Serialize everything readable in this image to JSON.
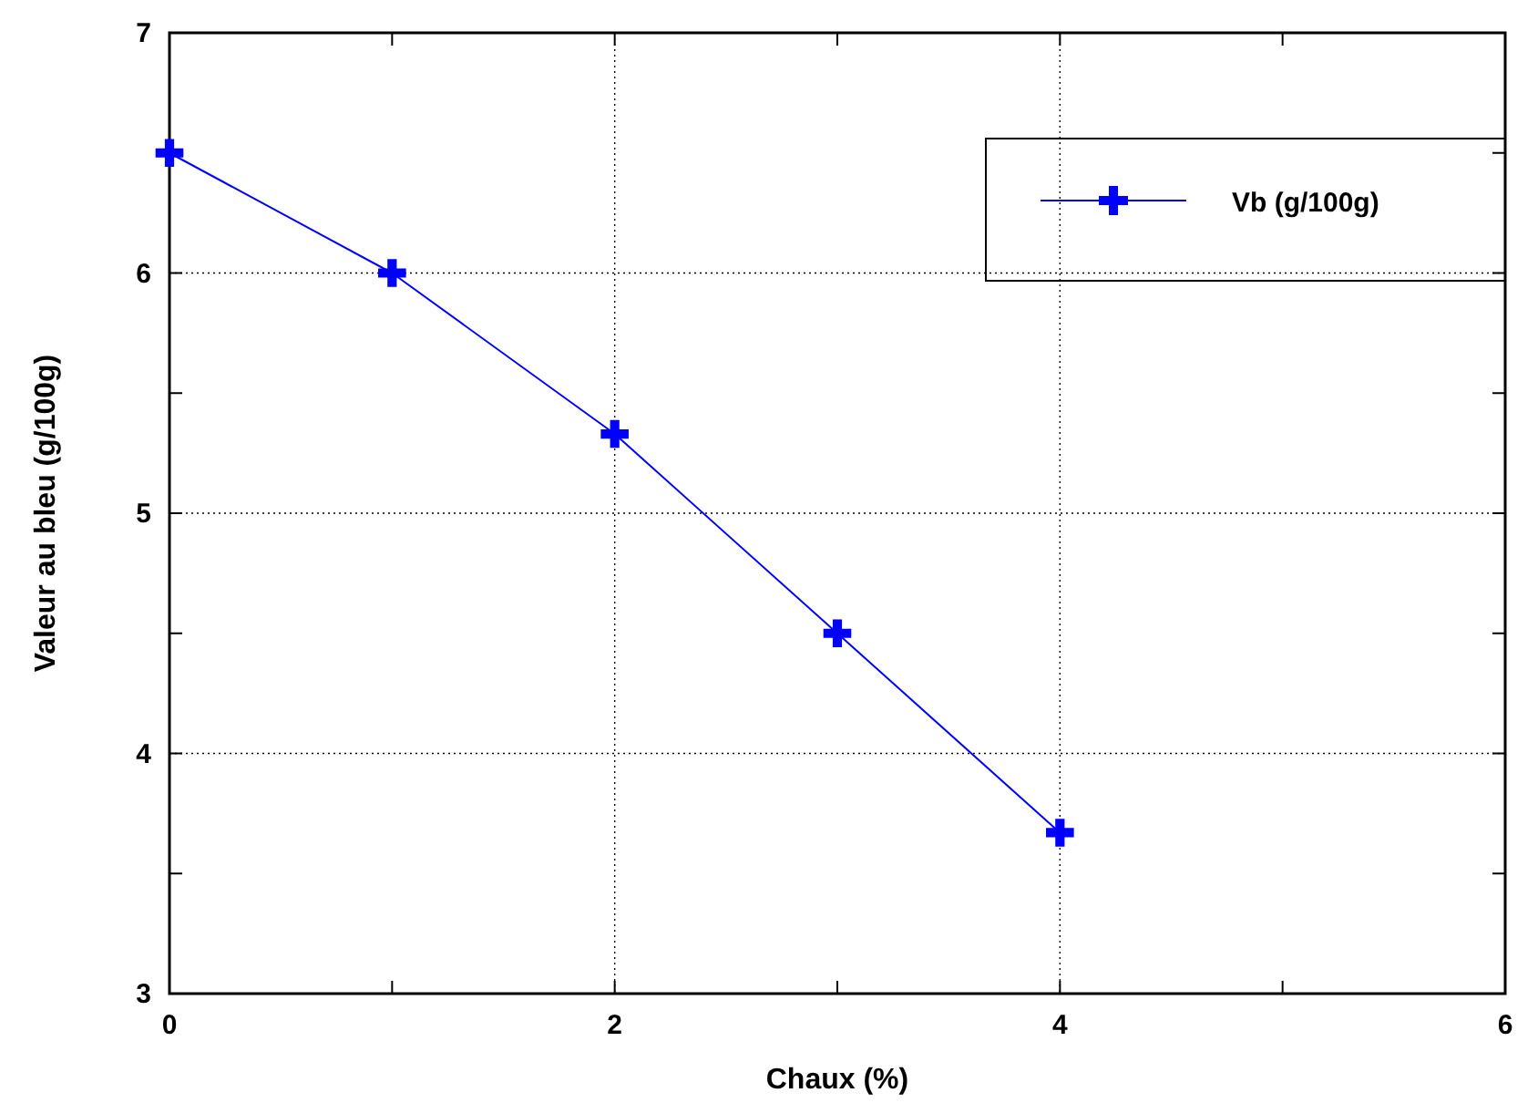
{
  "chart_data": {
    "type": "line",
    "xlabel": "Chaux (%)",
    "ylabel": "Valeur au bleu (g/100g)",
    "x": [
      0,
      1,
      2,
      3,
      4
    ],
    "series": [
      {
        "name": "Vb (g/100g)",
        "color": "#0000ff",
        "values": [
          6.5,
          6.0,
          5.33,
          4.5,
          3.67
        ]
      }
    ],
    "xlim": [
      0,
      6
    ],
    "xticks": [
      0,
      {
        "value": 1,
        "label": null
      },
      2,
      {
        "value": 3,
        "label": null
      },
      4,
      {
        "value": 5,
        "label": null
      },
      6
    ],
    "ylim": [
      3,
      7
    ],
    "yticks": [
      3,
      {
        "value": 3.5,
        "label": null
      },
      4,
      {
        "value": 4.5,
        "label": null
      },
      5,
      {
        "value": 5.5,
        "label": null
      },
      6,
      {
        "value": 6.5,
        "label": null
      },
      7
    ],
    "grid": true,
    "legend": "top right",
    "marker": "cross",
    "line_style": "solid"
  }
}
